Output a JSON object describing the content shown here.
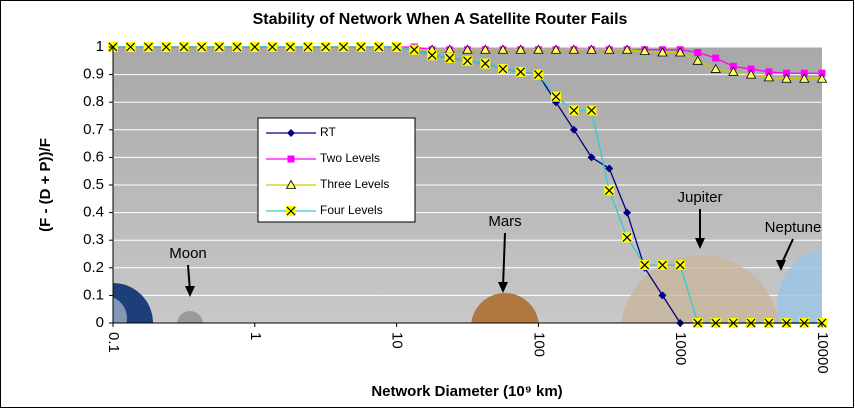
{
  "chart_data": {
    "type": "line",
    "title": "Stability of Network When A Satellite Router Fails",
    "x_label": "Network Diameter (10⁹ km)",
    "y_label": "(F - (D + P))/F",
    "log_x": true,
    "grid": true,
    "xlim": [
      0.1,
      10000
    ],
    "xticks": [
      0.1,
      1,
      10,
      100,
      1000,
      10000
    ],
    "ylim": [
      0,
      1
    ],
    "yticks": [
      0,
      0.1,
      0.2,
      0.3,
      0.4,
      0.5,
      0.6,
      0.7,
      0.8,
      0.9,
      1
    ],
    "x": [
      0.1,
      0.133,
      0.178,
      0.237,
      0.316,
      0.422,
      0.562,
      0.75,
      1,
      1.33,
      1.78,
      2.37,
      3.16,
      4.22,
      5.62,
      7.5,
      10,
      13.3,
      17.8,
      23.7,
      31.6,
      42.2,
      56.2,
      75,
      100,
      133,
      178,
      237,
      316,
      422,
      562,
      750,
      1000,
      1330,
      1780,
      2370,
      3160,
      4220,
      5620,
      7500,
      10000
    ],
    "series": [
      {
        "name": "RT",
        "color": "#000080",
        "line_color": "#000080",
        "marker": "diamond",
        "values": [
          1,
          1,
          1,
          1,
          1,
          1,
          1,
          1,
          1,
          1,
          1,
          1,
          1,
          1,
          1,
          1,
          1,
          0.99,
          0.97,
          0.96,
          0.95,
          0.94,
          0.92,
          0.91,
          0.9,
          0.8,
          0.7,
          0.6,
          0.56,
          0.4,
          0.2,
          0.1,
          0,
          0,
          0,
          0,
          0,
          0,
          0,
          0,
          0
        ]
      },
      {
        "name": "Two Levels",
        "color": "#ff00ff",
        "line_color": "#ff00ff",
        "marker": "square",
        "values": [
          1,
          1,
          1,
          1,
          1,
          1,
          1,
          1,
          1,
          1,
          1,
          1,
          1,
          1,
          1,
          1,
          1,
          1,
          0.99,
          0.99,
          0.99,
          0.99,
          0.99,
          0.99,
          0.99,
          0.99,
          0.99,
          0.99,
          0.99,
          0.99,
          0.99,
          0.99,
          0.99,
          0.98,
          0.96,
          0.93,
          0.92,
          0.91,
          0.905,
          0.905,
          0.905
        ]
      },
      {
        "name": "Three Levels",
        "color": "#ffff66",
        "line_color": "#cccc00",
        "marker": "triangle",
        "values": [
          1,
          1,
          1,
          1,
          1,
          1,
          1,
          1,
          1,
          1,
          1,
          1,
          1,
          1,
          1,
          1,
          1,
          0.99,
          0.99,
          0.99,
          0.99,
          0.99,
          0.99,
          0.99,
          0.99,
          0.99,
          0.99,
          0.99,
          0.99,
          0.99,
          0.985,
          0.98,
          0.98,
          0.95,
          0.92,
          0.91,
          0.9,
          0.89,
          0.885,
          0.885,
          0.885
        ]
      },
      {
        "name": "Four Levels",
        "color": "#ffff00",
        "line_color": "#33cccc",
        "marker": "x",
        "values": [
          1,
          1,
          1,
          1,
          1,
          1,
          1,
          1,
          1,
          1,
          1,
          1,
          1,
          1,
          1,
          1,
          1,
          0.99,
          0.97,
          0.96,
          0.95,
          0.94,
          0.92,
          0.91,
          0.9,
          0.82,
          0.77,
          0.77,
          0.48,
          0.31,
          0.21,
          0.21,
          0.21,
          0,
          0,
          0,
          0,
          0,
          0,
          0,
          0
        ]
      }
    ],
    "annotations": [
      "Moon",
      "Mars",
      "Jupiter",
      "Neptune"
    ]
  }
}
